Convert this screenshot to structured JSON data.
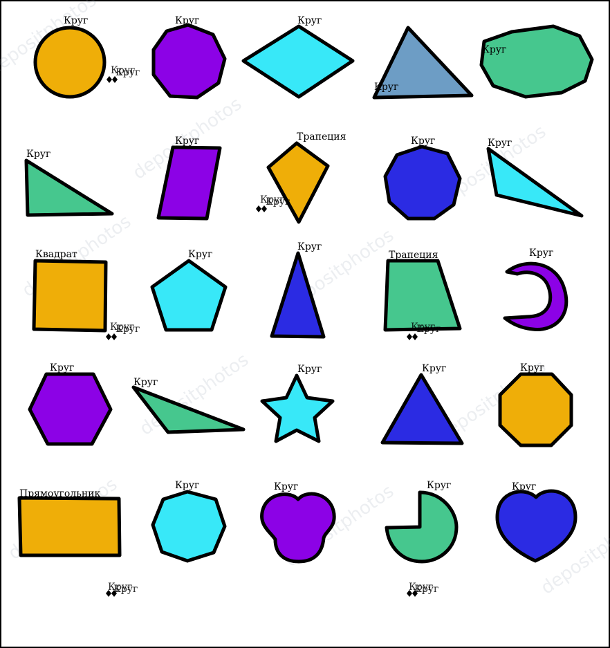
{
  "colors": {
    "orange": "#EFAE08",
    "purple": "#8C02E6",
    "cyan": "#38E8F8",
    "steel": "#6D9DC5",
    "green": "#46C78E",
    "blue": "#2B2BE3",
    "outline": "#000000"
  },
  "watermark": "depositphotos",
  "shapes": [
    {
      "id": "circle-r1",
      "label": "Круг",
      "fill": "orange"
    },
    {
      "id": "nonagon-r1",
      "label": "Круг",
      "fill": "purple"
    },
    {
      "id": "rhombus-r1",
      "label": "Круг",
      "fill": "cyan"
    },
    {
      "id": "triangle-r1",
      "label": "Круг",
      "fill": "steel"
    },
    {
      "id": "ellipse-r1",
      "label": "Круг",
      "fill": "green"
    },
    {
      "id": "right-triangle-r2",
      "label": "Круг",
      "fill": "green"
    },
    {
      "id": "parallelogram-r2",
      "label": "Круг",
      "fill": "purple"
    },
    {
      "id": "kite-r2",
      "label": "Трапеция",
      "fill": "orange"
    },
    {
      "id": "nonagon-r2",
      "label": "Круг",
      "fill": "blue"
    },
    {
      "id": "obtuse-triangle-r2",
      "label": "Круг",
      "fill": "cyan"
    },
    {
      "id": "square-r3",
      "label": "Квадрат",
      "fill": "orange"
    },
    {
      "id": "pentagon-r3",
      "label": "Круг",
      "fill": "cyan"
    },
    {
      "id": "acute-triangle-r3",
      "label": "Круг",
      "fill": "blue"
    },
    {
      "id": "trapezoid-r3",
      "label": "Трапеция",
      "fill": "green"
    },
    {
      "id": "crescent-r3",
      "label": "Круг",
      "fill": "purple"
    },
    {
      "id": "hexagon-r4",
      "label": "Круг",
      "fill": "purple"
    },
    {
      "id": "scalene-triangle-r4",
      "label": "Круг",
      "fill": "green"
    },
    {
      "id": "star-r4",
      "label": "Круг",
      "fill": "cyan"
    },
    {
      "id": "triangle-r4",
      "label": "Круг",
      "fill": "blue"
    },
    {
      "id": "octagon-r4",
      "label": "Круг",
      "fill": "orange"
    },
    {
      "id": "rectangle-r5",
      "label": "Прямоугольник",
      "fill": "orange"
    },
    {
      "id": "heptagon-r5",
      "label": "Круг",
      "fill": "cyan"
    },
    {
      "id": "trefoil-r5",
      "label": "Круг",
      "fill": "purple"
    },
    {
      "id": "pacman-r5",
      "label": "Круг",
      "fill": "green"
    },
    {
      "id": "heart-r5",
      "label": "Круг",
      "fill": "blue"
    }
  ],
  "stray_labels": [
    {
      "text": "Круг",
      "overlap": "Круг"
    },
    {
      "text": "Круг",
      "overlap": "Круг"
    },
    {
      "text": "Круг",
      "overlap": "Круг"
    },
    {
      "text": "Круг",
      "overlap": "Круг"
    },
    {
      "text": "Круг",
      "overlap": "Круг"
    },
    {
      "text": "Круг",
      "overlap": "Круг"
    }
  ]
}
